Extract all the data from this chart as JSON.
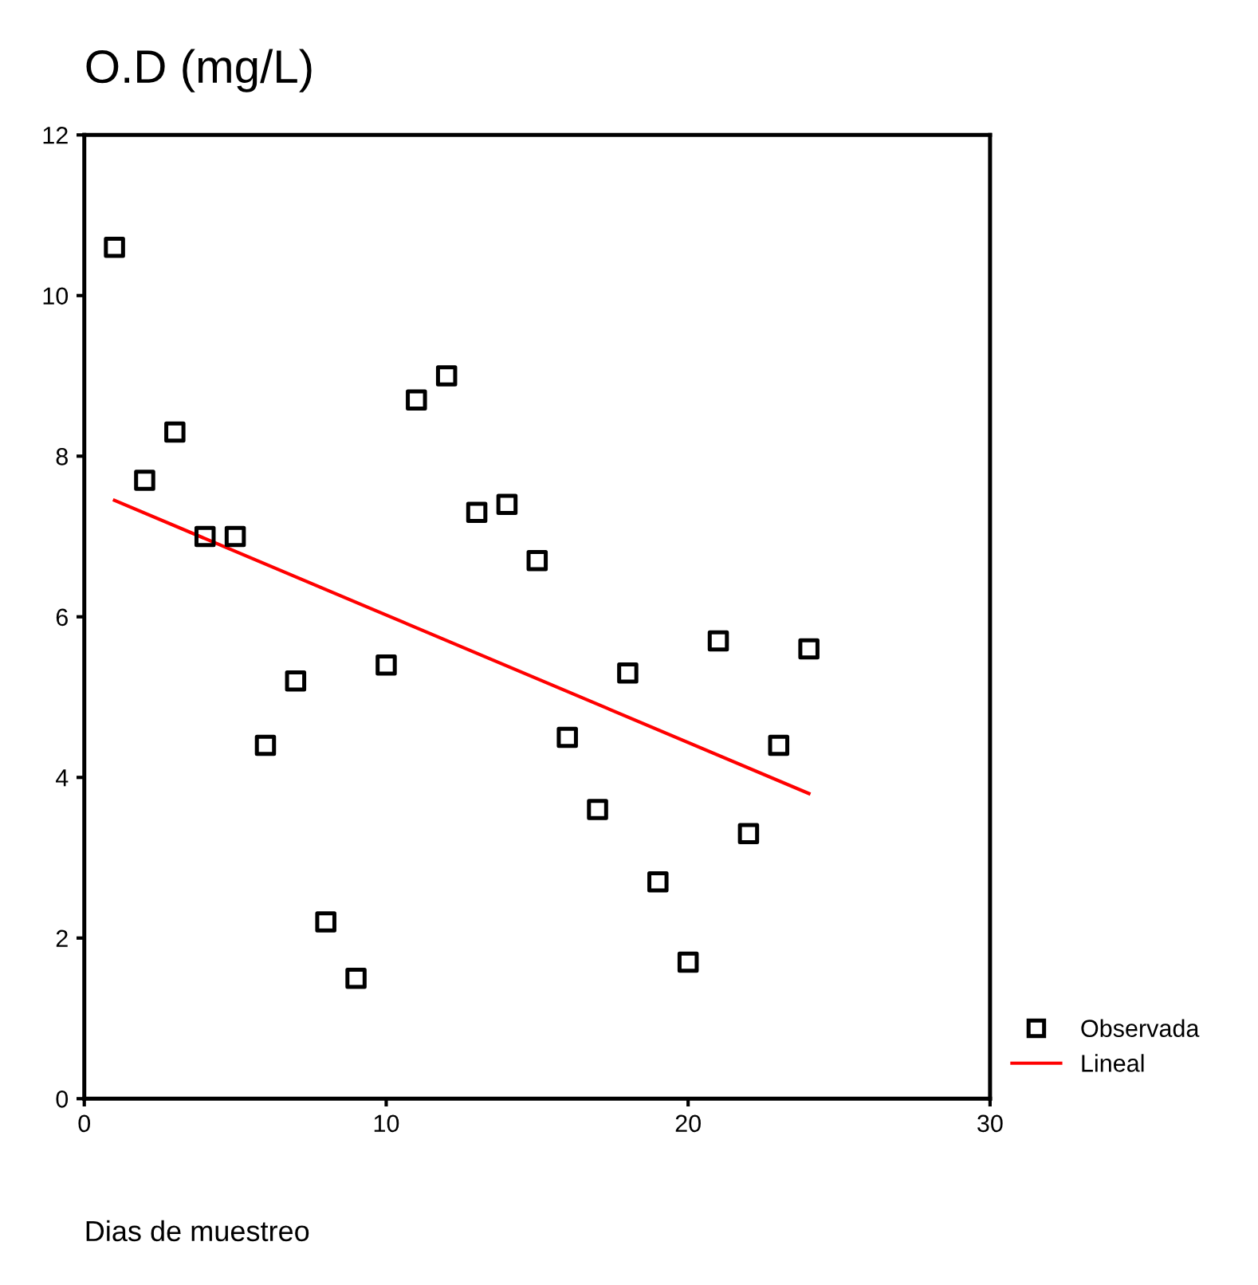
{
  "chart_data": {
    "type": "scatter",
    "title": "O.D (mg/L)",
    "xlabel": "Dias de muestreo",
    "xlim": [
      0,
      30
    ],
    "xticks": [
      0,
      10,
      20,
      30
    ],
    "ylim": [
      0,
      12
    ],
    "yticks": [
      0,
      2,
      4,
      6,
      8,
      10,
      12
    ],
    "grid": false,
    "legend": "bottom right",
    "series": [
      {
        "name": "Observada",
        "color": "#000000",
        "marker": "square",
        "x": [
          1,
          2,
          3,
          4,
          5,
          6,
          7,
          8,
          9,
          10,
          11,
          12,
          13,
          14,
          15,
          16,
          17,
          18,
          19,
          20,
          21,
          22,
          23,
          24
        ],
        "values": [
          10.6,
          7.7,
          8.3,
          7.0,
          7.0,
          4.4,
          5.2,
          2.2,
          1.5,
          5.4,
          8.7,
          9.0,
          7.3,
          7.4,
          6.7,
          4.5,
          3.6,
          5.3,
          2.7,
          1.7,
          5.7,
          3.3,
          4.4,
          5.6
        ]
      },
      {
        "name": "Lineal",
        "color": "#ff0000",
        "type": "line",
        "x": [
          1,
          24
        ],
        "values": [
          7.45,
          3.8
        ]
      }
    ]
  }
}
